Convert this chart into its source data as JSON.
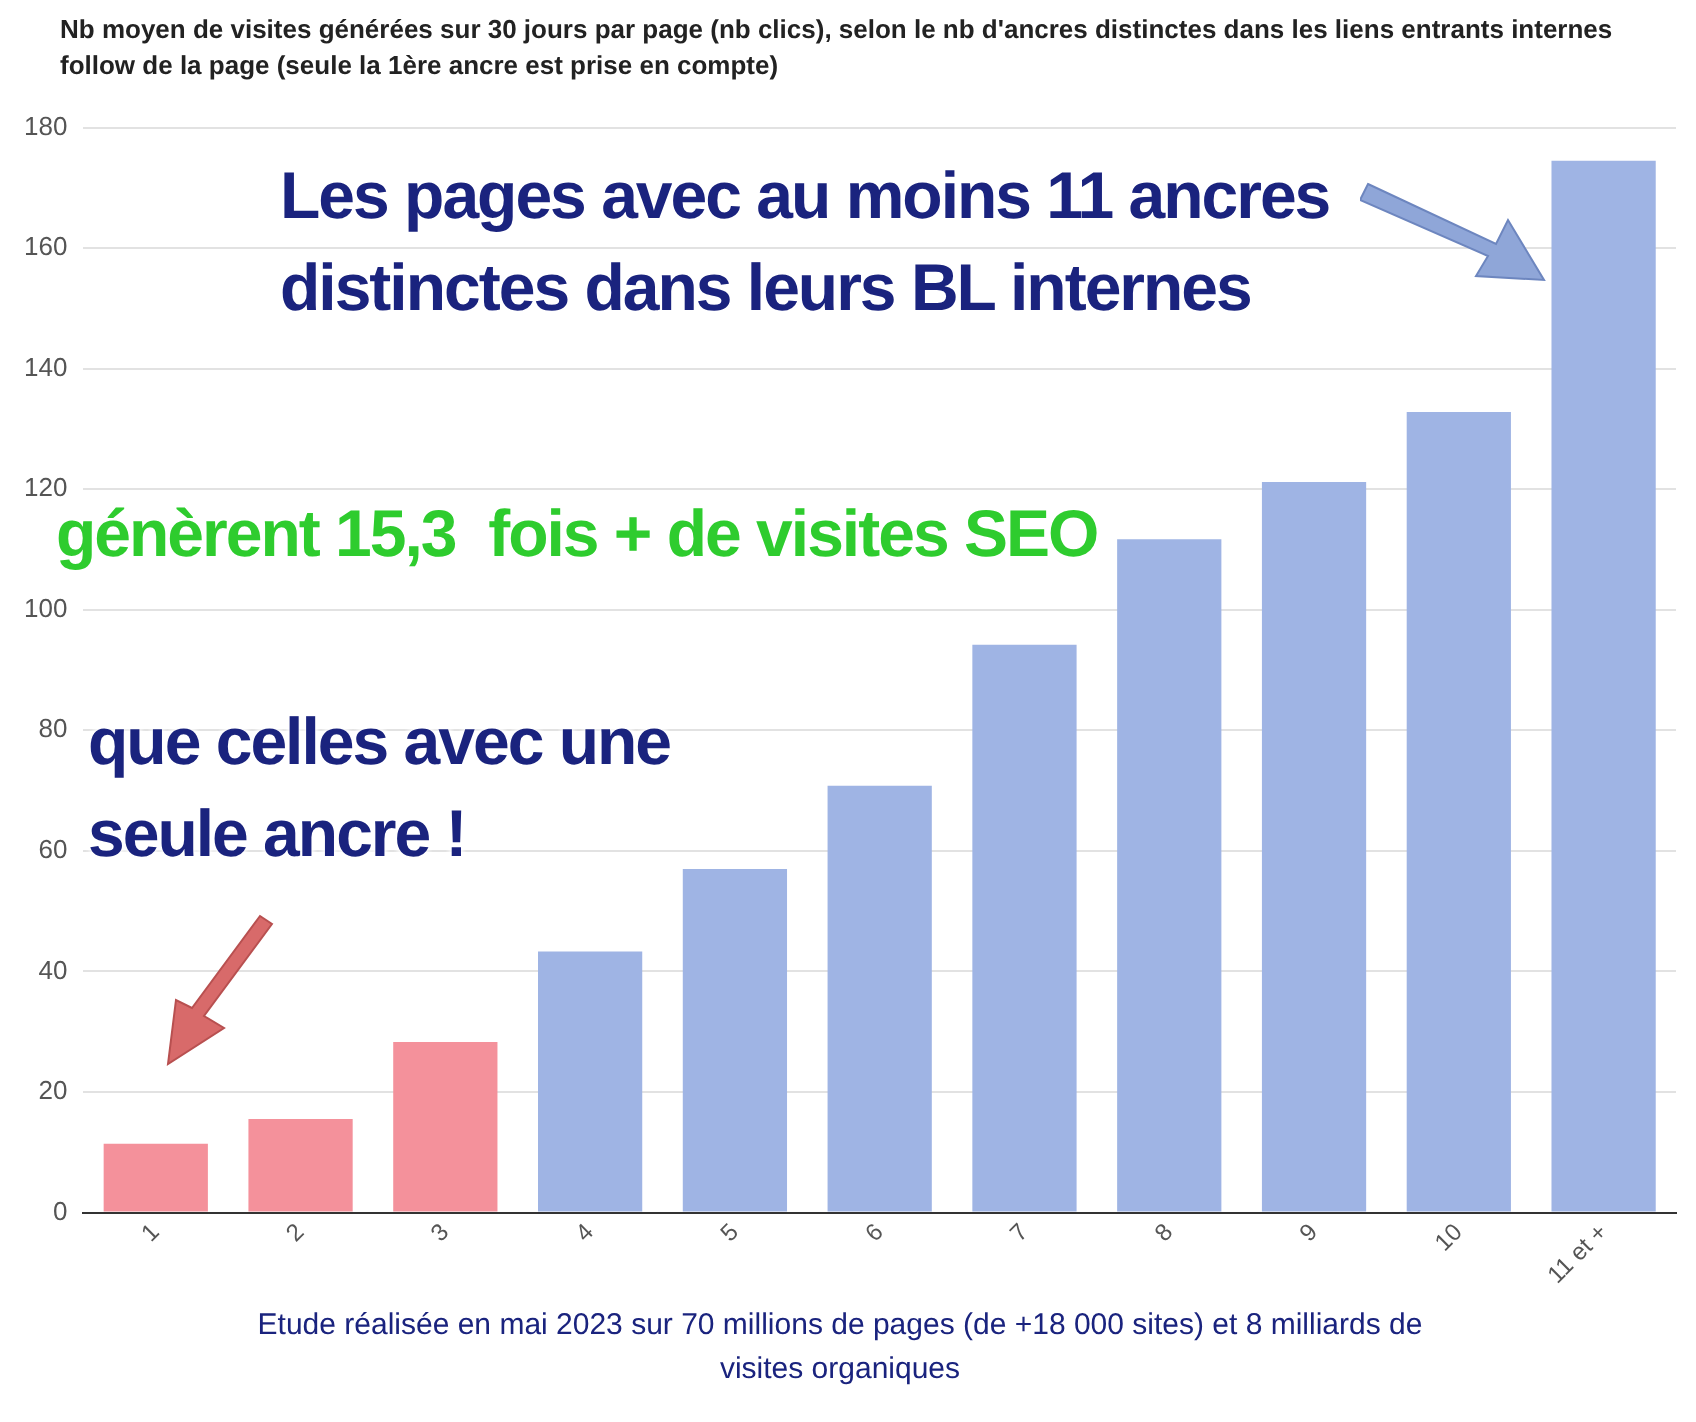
{
  "chart_data": {
    "type": "bar",
    "title": "Nb moyen de visites générées sur 30 jours par page (nb clics), selon le nb d'ancres distinctes dans les liens entrants internes follow de la page (seule la 1ère ancre est prise en compte)",
    "categories": [
      "1",
      "2",
      "3",
      "4",
      "5",
      "6",
      "7",
      "8",
      "9",
      "10",
      "11 et +"
    ],
    "values": [
      11.4,
      15.5,
      28.3,
      43.3,
      57,
      70.8,
      94.2,
      111.7,
      121.2,
      132.8,
      174.5
    ],
    "colors": [
      "#f4919b",
      "#f4919b",
      "#f4919b",
      "#9fb4e4",
      "#9fb4e4",
      "#9fb4e4",
      "#9fb4e4",
      "#9fb4e4",
      "#9fb4e4",
      "#9fb4e4",
      "#9fb4e4"
    ],
    "ylim": [
      0,
      180
    ],
    "yticks": [
      0,
      20,
      40,
      60,
      80,
      100,
      120,
      140,
      160,
      180
    ],
    "grid": "y",
    "annotations": [
      "Les pages avec au moins 11 ancres distinctes dans leurs BL internes",
      "génèrent 15,3  fois + de visites SEO",
      "que celles avec une seule ancre !",
      "Etude réalisée en mai 2023 sur 70 millions de pages (de +18 000 sites) et 8 milliards de visites organiques"
    ]
  }
}
